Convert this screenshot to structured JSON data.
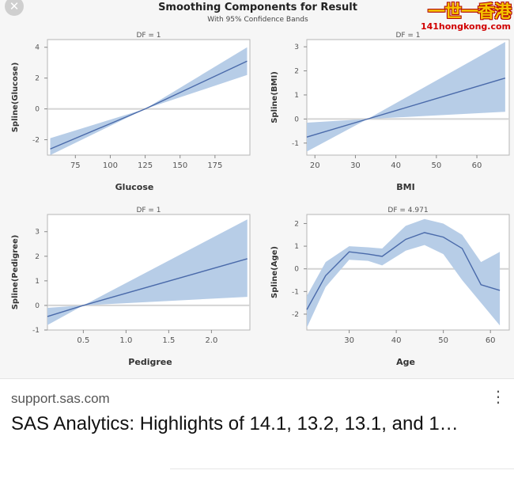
{
  "result": {
    "close_icon": "close-icon",
    "source": "support.sas.com",
    "title": "SAS Analytics: Highlights of 14.1, 13.2, 13.1, and 1…",
    "menu_icon": "more-vert-icon"
  },
  "watermark": {
    "main": "一世一香港",
    "sub": "141hongkong.com"
  },
  "figure": {
    "title": "Smoothing Components for Result",
    "subtitle": "With 95% Confidence Bands",
    "band_color": "#b7cde7",
    "line_color": "#4a6aaa"
  },
  "chart_data": [
    {
      "type": "line",
      "df_label": "DF = 1",
      "xlabel": "Glucose",
      "ylabel": "Spline(Glucose)",
      "xlim": [
        55,
        200
      ],
      "ylim": [
        -3,
        4.5
      ],
      "xticks": [
        75,
        100,
        125,
        150,
        175
      ],
      "yticks": [
        -2,
        0,
        2,
        4
      ],
      "x": [
        57,
        125,
        198
      ],
      "y": [
        -2.6,
        0,
        3.1
      ],
      "lower": [
        -3.0,
        0,
        2.2
      ],
      "upper": [
        -1.9,
        0,
        4.0
      ]
    },
    {
      "type": "line",
      "df_label": "DF = 1",
      "xlabel": "BMI",
      "ylabel": "Spline(BMI)",
      "xlim": [
        18,
        68
      ],
      "ylim": [
        -1.5,
        3.3
      ],
      "xticks": [
        20,
        30,
        40,
        50,
        60
      ],
      "yticks": [
        -1,
        0,
        1,
        2,
        3
      ],
      "x": [
        18,
        33,
        67
      ],
      "y": [
        -0.75,
        0,
        1.7
      ],
      "lower": [
        -1.35,
        0,
        0.3
      ],
      "upper": [
        -0.15,
        0,
        3.2
      ]
    },
    {
      "type": "line",
      "df_label": "DF = 1",
      "xlabel": "Pedigree",
      "ylabel": "Spline(Pedigree)",
      "xlim": [
        0.08,
        2.45
      ],
      "ylim": [
        -1,
        3.7
      ],
      "xticks": [
        "0.5",
        "1.0",
        "1.5",
        "2.0"
      ],
      "yticks": [
        -1,
        0,
        1,
        2,
        3
      ],
      "x": [
        0.08,
        0.5,
        2.42
      ],
      "y": [
        -0.45,
        0,
        1.9
      ],
      "lower": [
        -0.8,
        0,
        0.35
      ],
      "upper": [
        -0.1,
        0,
        3.5
      ]
    },
    {
      "type": "line",
      "df_label": "DF = 4.971",
      "xlabel": "Age",
      "ylabel": "Spline(Age)",
      "xlim": [
        21,
        64
      ],
      "ylim": [
        -2.7,
        2.4
      ],
      "xticks": [
        30,
        40,
        50,
        60
      ],
      "yticks": [
        -2,
        -1,
        0,
        1,
        2
      ],
      "x": [
        21,
        25,
        30,
        34,
        37,
        42,
        46,
        50,
        54,
        58,
        62
      ],
      "y": [
        -1.8,
        -0.3,
        0.75,
        0.65,
        0.55,
        1.3,
        1.6,
        1.4,
        0.9,
        -0.7,
        -0.95
      ],
      "lower": [
        -2.6,
        -0.8,
        0.4,
        0.35,
        0.15,
        0.8,
        1.05,
        0.65,
        -0.5,
        -1.5,
        -2.5
      ],
      "upper": [
        -1.2,
        0.3,
        1.0,
        0.95,
        0.9,
        1.9,
        2.2,
        2.0,
        1.5,
        0.3,
        0.75
      ]
    }
  ]
}
